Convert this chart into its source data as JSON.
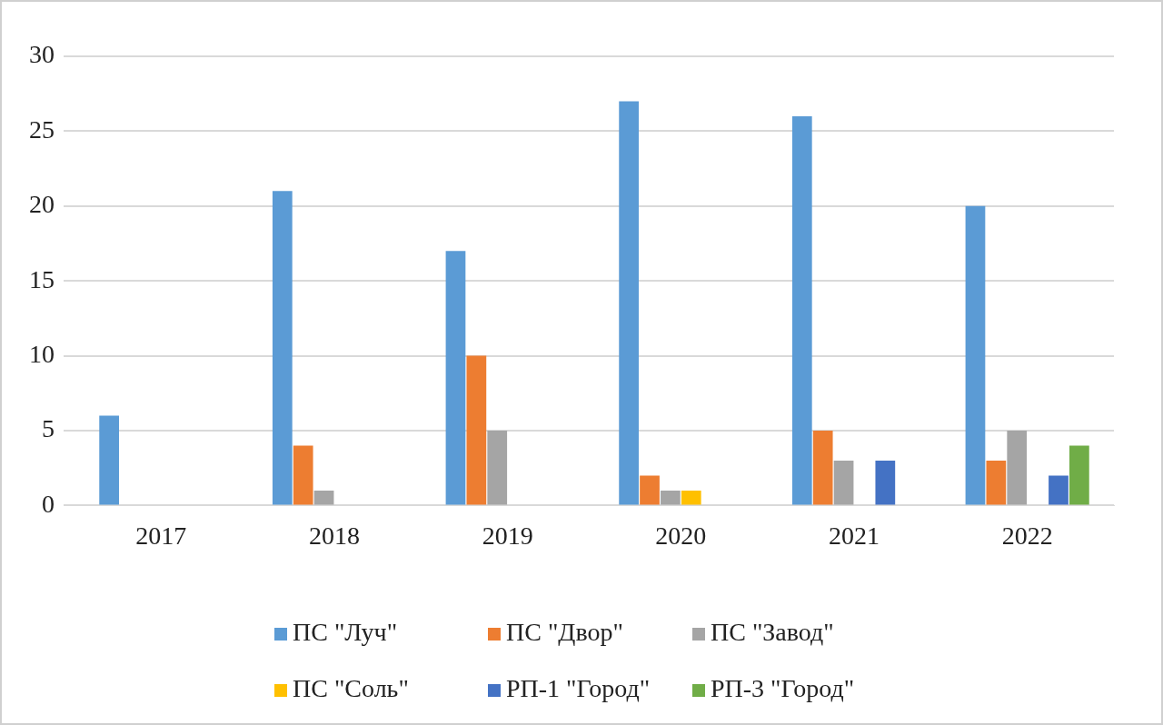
{
  "chart_data": {
    "type": "bar",
    "categories": [
      "2017",
      "2018",
      "2019",
      "2020",
      "2021",
      "2022"
    ],
    "series": [
      {
        "name": "ПС \"Луч\"",
        "color": "#5b9bd5",
        "values": [
          6,
          21,
          17,
          27,
          26,
          20
        ]
      },
      {
        "name": "ПС \"Двор\"",
        "color": "#ed7d31",
        "values": [
          null,
          4,
          10,
          2,
          5,
          3
        ]
      },
      {
        "name": "ПС \"Завод\"",
        "color": "#a5a5a5",
        "values": [
          null,
          1,
          5,
          1,
          3,
          5
        ]
      },
      {
        "name": "ПС \"Соль\"",
        "color": "#ffc000",
        "values": [
          null,
          null,
          null,
          1,
          null,
          null
        ]
      },
      {
        "name": "РП-1 \"Город\"",
        "color": "#4472c4",
        "values": [
          null,
          null,
          null,
          null,
          3,
          2
        ]
      },
      {
        "name": "РП-3 \"Город\"",
        "color": "#70ad47",
        "values": [
          null,
          null,
          null,
          null,
          null,
          4
        ]
      }
    ],
    "ylim": [
      0,
      30
    ],
    "yticks": [
      0,
      5,
      10,
      15,
      20,
      25,
      30
    ],
    "grid": "y",
    "legend": "bottom"
  }
}
